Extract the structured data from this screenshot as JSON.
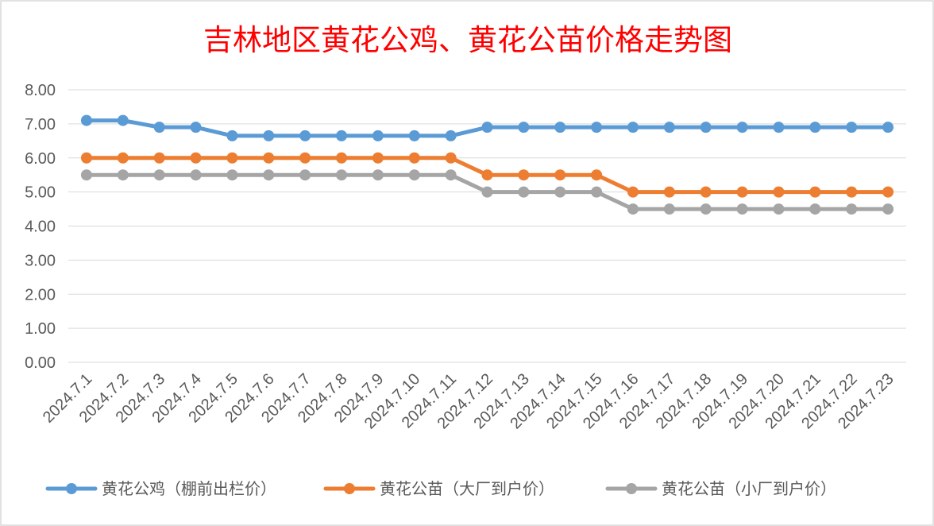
{
  "chart_data": {
    "type": "line",
    "title": "吉林地区黄花公鸡、黄花公苗价格走势图",
    "title_color": "#FF0000",
    "categories": [
      "2024.7.1",
      "2024.7.2",
      "2024.7.3",
      "2024.7.4",
      "2024.7.5",
      "2024.7.6",
      "2024.7.7",
      "2024.7.8",
      "2024.7.9",
      "2024.7.10",
      "2024.7.11",
      "2024.7.12",
      "2024.7.13",
      "2024.7.14",
      "2024.7.15",
      "2024.7.16",
      "2024.7.17",
      "2024.7.18",
      "2024.7.19",
      "2024.7.20",
      "2024.7.21",
      "2024.7.22",
      "2024.7.23"
    ],
    "series": [
      {
        "name": "黄花公鸡（棚前出栏价）",
        "color": "#5B9BD5",
        "values": [
          7.1,
          7.1,
          6.9,
          6.9,
          6.65,
          6.65,
          6.65,
          6.65,
          6.65,
          6.65,
          6.65,
          6.9,
          6.9,
          6.9,
          6.9,
          6.9,
          6.9,
          6.9,
          6.9,
          6.9,
          6.9,
          6.9,
          6.9
        ]
      },
      {
        "name": "黄花公苗（大厂到户价）",
        "color": "#ED7D31",
        "values": [
          6.0,
          6.0,
          6.0,
          6.0,
          6.0,
          6.0,
          6.0,
          6.0,
          6.0,
          6.0,
          6.0,
          5.5,
          5.5,
          5.5,
          5.5,
          5.0,
          5.0,
          5.0,
          5.0,
          5.0,
          5.0,
          5.0,
          5.0
        ]
      },
      {
        "name": "黄花公苗（小厂到户价）",
        "color": "#A5A5A5",
        "values": [
          5.5,
          5.5,
          5.5,
          5.5,
          5.5,
          5.5,
          5.5,
          5.5,
          5.5,
          5.5,
          5.5,
          5.0,
          5.0,
          5.0,
          5.0,
          4.5,
          4.5,
          4.5,
          4.5,
          4.5,
          4.5,
          4.5,
          4.5
        ]
      }
    ],
    "y_ticks": [
      "0.00",
      "1.00",
      "2.00",
      "3.00",
      "4.00",
      "5.00",
      "6.00",
      "7.00",
      "8.00"
    ],
    "ylim": [
      0,
      8
    ],
    "xlabel": "",
    "ylabel": "",
    "grid": true,
    "legend": "bottom",
    "x_tick_rotation": "-45deg"
  }
}
